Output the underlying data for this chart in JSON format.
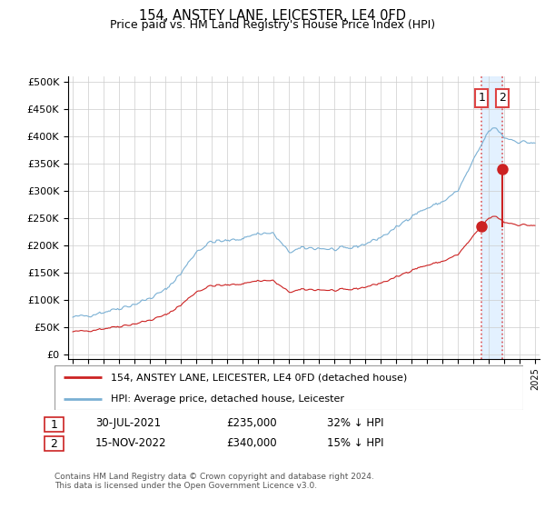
{
  "title": "154, ANSTEY LANE, LEICESTER, LE4 0FD",
  "subtitle": "Price paid vs. HM Land Registry's House Price Index (HPI)",
  "yticks": [
    0,
    50000,
    100000,
    150000,
    200000,
    250000,
    300000,
    350000,
    400000,
    450000,
    500000
  ],
  "ytick_labels": [
    "£0",
    "£50K",
    "£100K",
    "£150K",
    "£200K",
    "£250K",
    "£300K",
    "£350K",
    "£400K",
    "£450K",
    "£500K"
  ],
  "xlim_start": 1994.7,
  "xlim_end": 2025.3,
  "ylim_min": -8000,
  "ylim_max": 510000,
  "hpi_color": "#7ab0d4",
  "price_color": "#cc2222",
  "dashed_color": "#dd4444",
  "marker_color": "#cc2222",
  "shade_color": "#ddeeff",
  "transaction1_price": 235000,
  "transaction1_year": 2021.55,
  "transaction2_price": 340000,
  "transaction2_year": 2022.87,
  "legend_label1": "154, ANSTEY LANE, LEICESTER, LE4 0FD (detached house)",
  "legend_label2": "HPI: Average price, detached house, Leicester",
  "footer": "Contains HM Land Registry data © Crown copyright and database right 2024.\nThis data is licensed under the Open Government Licence v3.0.",
  "background_color": "#ffffff",
  "grid_color": "#cccccc",
  "table_row1": [
    "1",
    "30-JUL-2021",
    "£235,000",
    "32% ↓ HPI"
  ],
  "table_row2": [
    "2",
    "15-NOV-2022",
    "£340,000",
    "15% ↓ HPI"
  ]
}
